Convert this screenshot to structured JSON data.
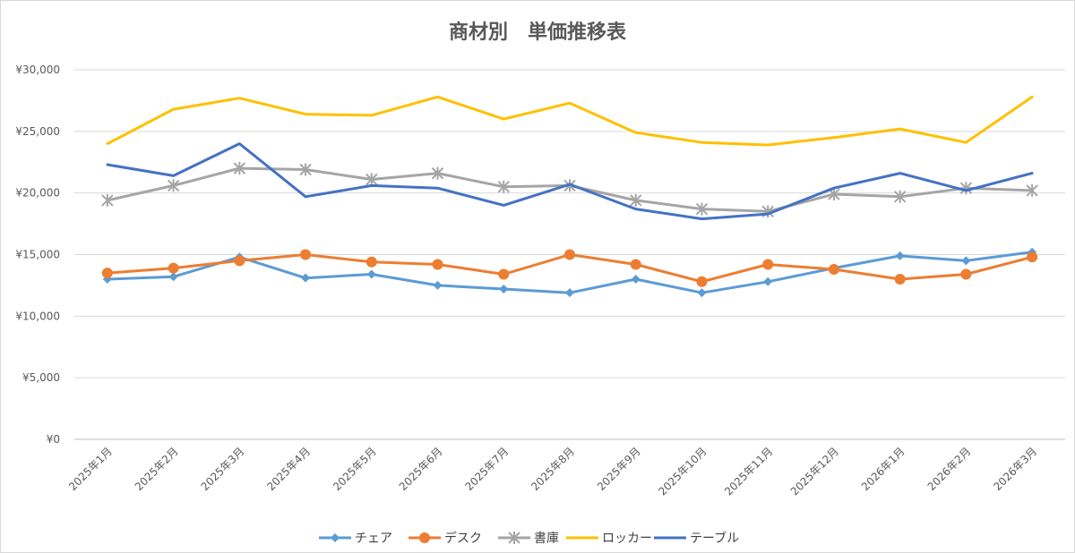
{
  "chart_data": {
    "type": "line",
    "title": "商材別　単価推移表",
    "xlabel": "",
    "ylabel": "",
    "ylim": [
      0,
      30000
    ],
    "y_ticks": [
      "¥0",
      "¥5,000",
      "¥10,000",
      "¥15,000",
      "¥20,000",
      "¥25,000",
      "¥30,000"
    ],
    "grid": "horizontal",
    "legend_position": "bottom",
    "categories": [
      "2025年1月",
      "2025年2月",
      "2025年3月",
      "2025年4月",
      "2025年5月",
      "2025年6月",
      "2025年7月",
      "2025年8月",
      "2025年9月",
      "2025年10月",
      "2025年11月",
      "2025年12月",
      "2026年1月",
      "2026年2月",
      "2026年3月"
    ],
    "series": [
      {
        "name": "チェア",
        "color": "#5B9BD5",
        "marker": "diamond",
        "values": [
          13000,
          13200,
          14800,
          13100,
          13400,
          12500,
          12200,
          11900,
          13000,
          11900,
          12800,
          13900,
          14900,
          14500,
          15200
        ]
      },
      {
        "name": "デスク",
        "color": "#ED7D31",
        "marker": "circle",
        "values": [
          13500,
          13900,
          14500,
          15000,
          14400,
          14200,
          13400,
          15000,
          14200,
          12800,
          14200,
          13800,
          13000,
          13400,
          14800
        ]
      },
      {
        "name": "書庫",
        "color": "#A5A5A5",
        "marker": "star",
        "values": [
          19400,
          20600,
          22000,
          21900,
          21100,
          21600,
          20500,
          20600,
          19400,
          18700,
          18500,
          19900,
          19700,
          20400,
          20200
        ]
      },
      {
        "name": "ロッカー",
        "color": "#FFC000",
        "marker": "none",
        "values": [
          24000,
          26800,
          27700,
          26400,
          26300,
          27800,
          26000,
          27300,
          24900,
          24100,
          23900,
          24500,
          25200,
          24100,
          27800
        ]
      },
      {
        "name": "テーブル",
        "color": "#4472C4",
        "marker": "none",
        "values": [
          22300,
          21400,
          24000,
          19700,
          20600,
          20400,
          19000,
          20700,
          18700,
          17900,
          18300,
          20400,
          21600,
          20200,
          21600
        ]
      }
    ]
  }
}
